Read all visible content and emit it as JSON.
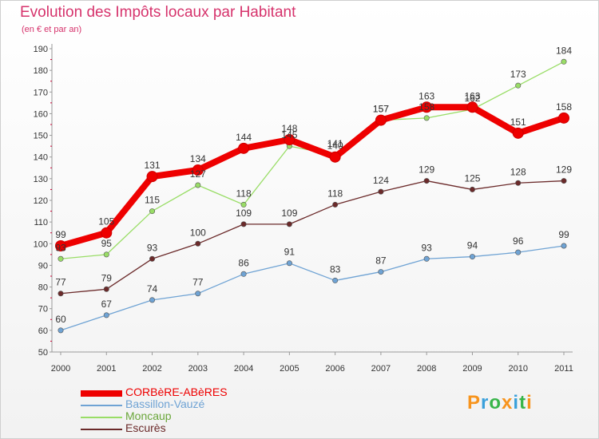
{
  "title": "Evolution des Impôts locaux par Habitant",
  "subtitle": "(en € et par an)",
  "logo": {
    "text": "Proxiti",
    "letters": [
      "P",
      "r",
      "o",
      "x",
      "i",
      "t",
      "i"
    ],
    "colors": [
      "#f7941d",
      "#3aa0db",
      "#39b54a",
      "#f7941d",
      "#3aa0db",
      "#39b54a",
      "#f7941d"
    ]
  },
  "chart_data": {
    "type": "line",
    "title": "Evolution des Impôts locaux par Habitant",
    "subtitle": "(en € et par an)",
    "x": [
      "2000",
      "2001",
      "2002",
      "2003",
      "2004",
      "2005",
      "2006",
      "2007",
      "2008",
      "2009",
      "2010",
      "2011"
    ],
    "ylim": [
      50,
      190
    ],
    "yticks": [
      50,
      60,
      70,
      80,
      90,
      100,
      110,
      120,
      130,
      140,
      150,
      160,
      170,
      180,
      190
    ],
    "grid": false,
    "legend_position": "bottom-left",
    "series": [
      {
        "name": "CORBèRE-ABèRES",
        "color": "#ee0000",
        "values": [
          99,
          105,
          131,
          134,
          144,
          148,
          140,
          157,
          163,
          163,
          151,
          158
        ]
      },
      {
        "name": "Bassillon-Vauzé",
        "color": "#6fa3d4",
        "values": [
          60,
          67,
          74,
          77,
          86,
          91,
          83,
          87,
          93,
          94,
          96,
          99
        ]
      },
      {
        "name": "Moncaup",
        "color": "#99dd66",
        "values": [
          93,
          95,
          115,
          127,
          118,
          145,
          141,
          157,
          158,
          162,
          173,
          184
        ]
      },
      {
        "name": "Escurès",
        "color": "#6b2a2a",
        "values": [
          77,
          79,
          93,
          100,
          109,
          109,
          118,
          124,
          129,
          125,
          128,
          129
        ]
      }
    ]
  }
}
